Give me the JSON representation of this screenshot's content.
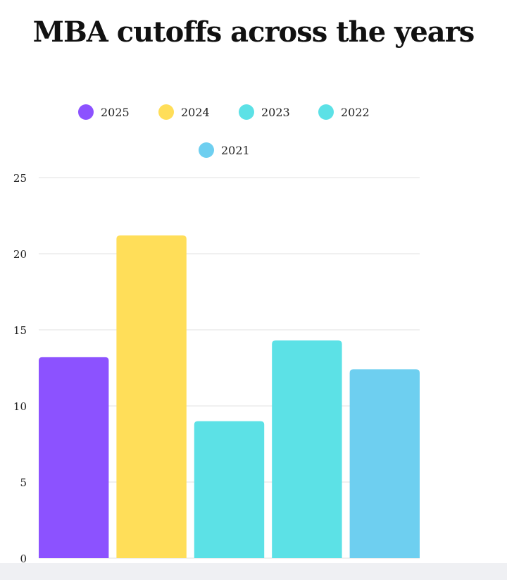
{
  "chart_data": {
    "type": "bar",
    "title": "MBA cutoffs across the years",
    "categories": [
      "2025",
      "2024",
      "2023",
      "2022",
      "2021"
    ],
    "values": [
      13.2,
      21.2,
      9.0,
      14.3,
      12.4
    ],
    "colors": [
      "#8c52ff",
      "#ffde59",
      "#5ce1e6",
      "#5ce1e6",
      "#6ecff0"
    ],
    "legend": [
      "2025",
      "2024",
      "2023",
      "2022",
      "2021"
    ],
    "legend_placement": "top",
    "ylim": [
      0,
      25
    ],
    "yticks": [
      "0",
      "5",
      "10",
      "15",
      "20",
      "25"
    ],
    "grid": true
  }
}
